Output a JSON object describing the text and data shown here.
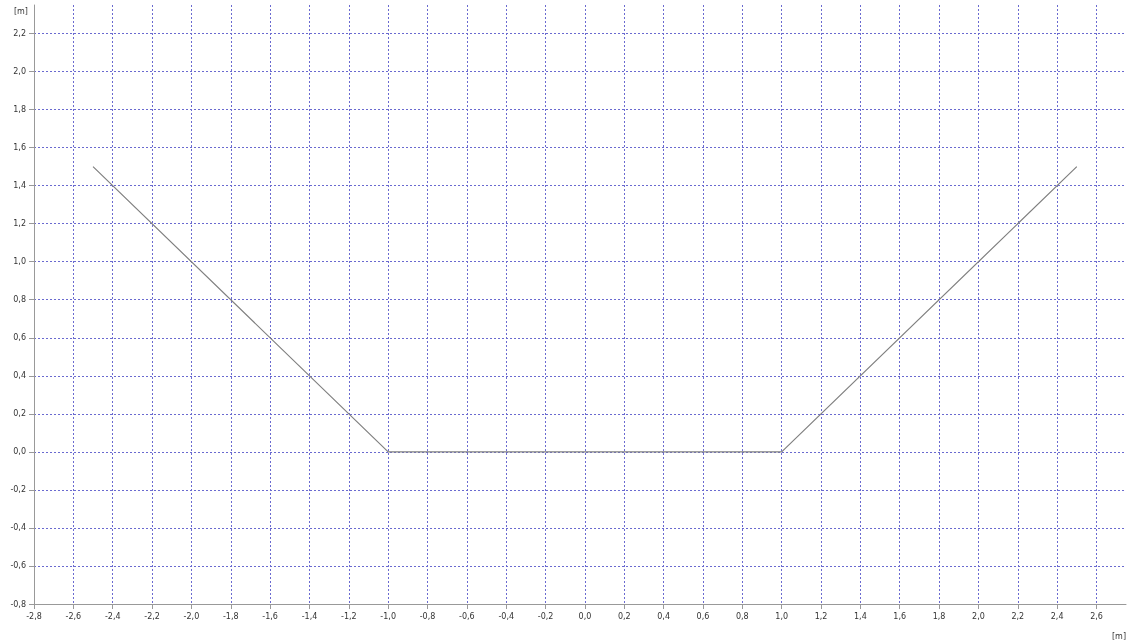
{
  "chart_data": {
    "type": "line",
    "xlabel": "[m]",
    "ylabel": "[m]",
    "x": [
      -2.5,
      -1.0,
      1.0,
      2.5
    ],
    "series": [
      {
        "color": "#808080",
        "values": [
          1.5,
          0.0,
          0.0,
          1.5
        ]
      }
    ],
    "xlim": [
      -2.8,
      2.75
    ],
    "ylim": [
      -0.8,
      2.35
    ],
    "xticks": [
      {
        "value": -2.8,
        "label": "-2,8"
      },
      {
        "value": -2.6,
        "label": "-2,6"
      },
      {
        "value": -2.4,
        "label": "-2,4"
      },
      {
        "value": -2.2,
        "label": "-2,2"
      },
      {
        "value": -2.0,
        "label": "-2,0"
      },
      {
        "value": -1.8,
        "label": "-1,8"
      },
      {
        "value": -1.6,
        "label": "-1,6"
      },
      {
        "value": -1.4,
        "label": "-1,4"
      },
      {
        "value": -1.2,
        "label": "-1,2"
      },
      {
        "value": -1.0,
        "label": "-1,0"
      },
      {
        "value": -0.8,
        "label": "-0,8"
      },
      {
        "value": -0.6,
        "label": "-0,6"
      },
      {
        "value": -0.4,
        "label": "-0,4"
      },
      {
        "value": -0.2,
        "label": "-0,2"
      },
      {
        "value": 0,
        "label": "0,0"
      },
      {
        "value": 0.2,
        "label": "0,2"
      },
      {
        "value": 0.4,
        "label": "0,4"
      },
      {
        "value": 0.6,
        "label": "0,6"
      },
      {
        "value": 0.8,
        "label": "0,8"
      },
      {
        "value": 1.0,
        "label": "1,0"
      },
      {
        "value": 1.2,
        "label": "1,2"
      },
      {
        "value": 1.4,
        "label": "1,4"
      },
      {
        "value": 1.6,
        "label": "1,6"
      },
      {
        "value": 1.8,
        "label": "1,8"
      },
      {
        "value": 2.0,
        "label": "2,0"
      },
      {
        "value": 2.2,
        "label": "2,2"
      },
      {
        "value": 2.4,
        "label": "2,4"
      },
      {
        "value": 2.6,
        "label": "2,6"
      }
    ],
    "yticks": [
      {
        "value": -0.8,
        "label": "-0,8"
      },
      {
        "value": -0.6,
        "label": "-0,6"
      },
      {
        "value": -0.4,
        "label": "-0,4"
      },
      {
        "value": -0.2,
        "label": "-0,2"
      },
      {
        "value": 0,
        "label": "0,0"
      },
      {
        "value": 0.2,
        "label": "0,2"
      },
      {
        "value": 0.4,
        "label": "0,4"
      },
      {
        "value": 0.6,
        "label": "0,6"
      },
      {
        "value": 0.8,
        "label": "0,8"
      },
      {
        "value": 1.0,
        "label": "1,0"
      },
      {
        "value": 1.2,
        "label": "1,2"
      },
      {
        "value": 1.4,
        "label": "1,4"
      },
      {
        "value": 1.6,
        "label": "1,6"
      },
      {
        "value": 1.8,
        "label": "1,8"
      },
      {
        "value": 2.0,
        "label": "2,0"
      },
      {
        "value": 2.2,
        "label": "2,2"
      }
    ],
    "grid": true,
    "marker": "none",
    "line_style": "solid"
  }
}
